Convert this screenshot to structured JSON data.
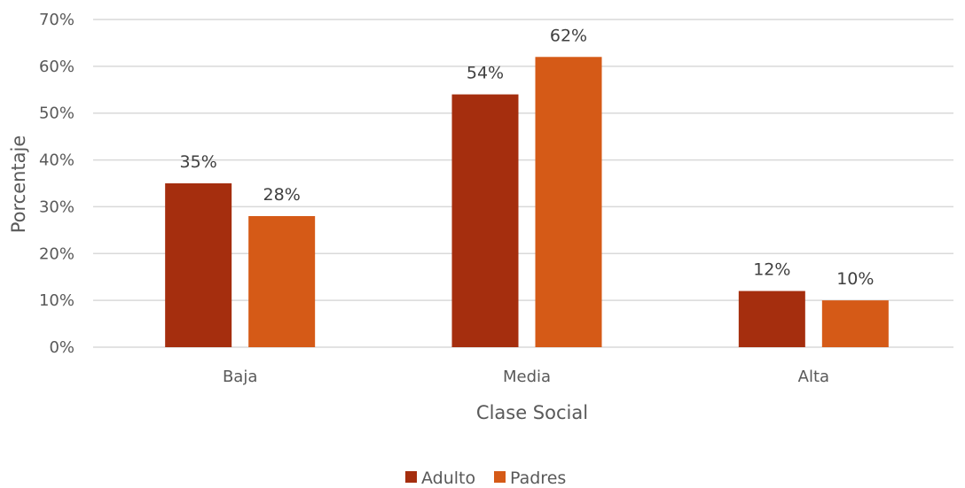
{
  "chart_data": {
    "type": "bar",
    "categories": [
      "Baja",
      "Media",
      "Alta"
    ],
    "series": [
      {
        "name": "Adulto",
        "values": [
          35,
          54,
          12
        ],
        "labels": [
          "35%",
          "54%",
          "12%"
        ],
        "color": "#A52E0E"
      },
      {
        "name": "Padres",
        "values": [
          28,
          62,
          10
        ],
        "labels": [
          "28%",
          "62%",
          "10%"
        ],
        "color": "#D55A17"
      }
    ],
    "xlabel": "Clase Social",
    "ylabel": "Porcentaje",
    "ylim": [
      0,
      70
    ],
    "yticks": [
      "0%",
      "10%",
      "20%",
      "30%",
      "40%",
      "50%",
      "60%",
      "70%"
    ],
    "grid": true,
    "legend_position": "bottom"
  }
}
